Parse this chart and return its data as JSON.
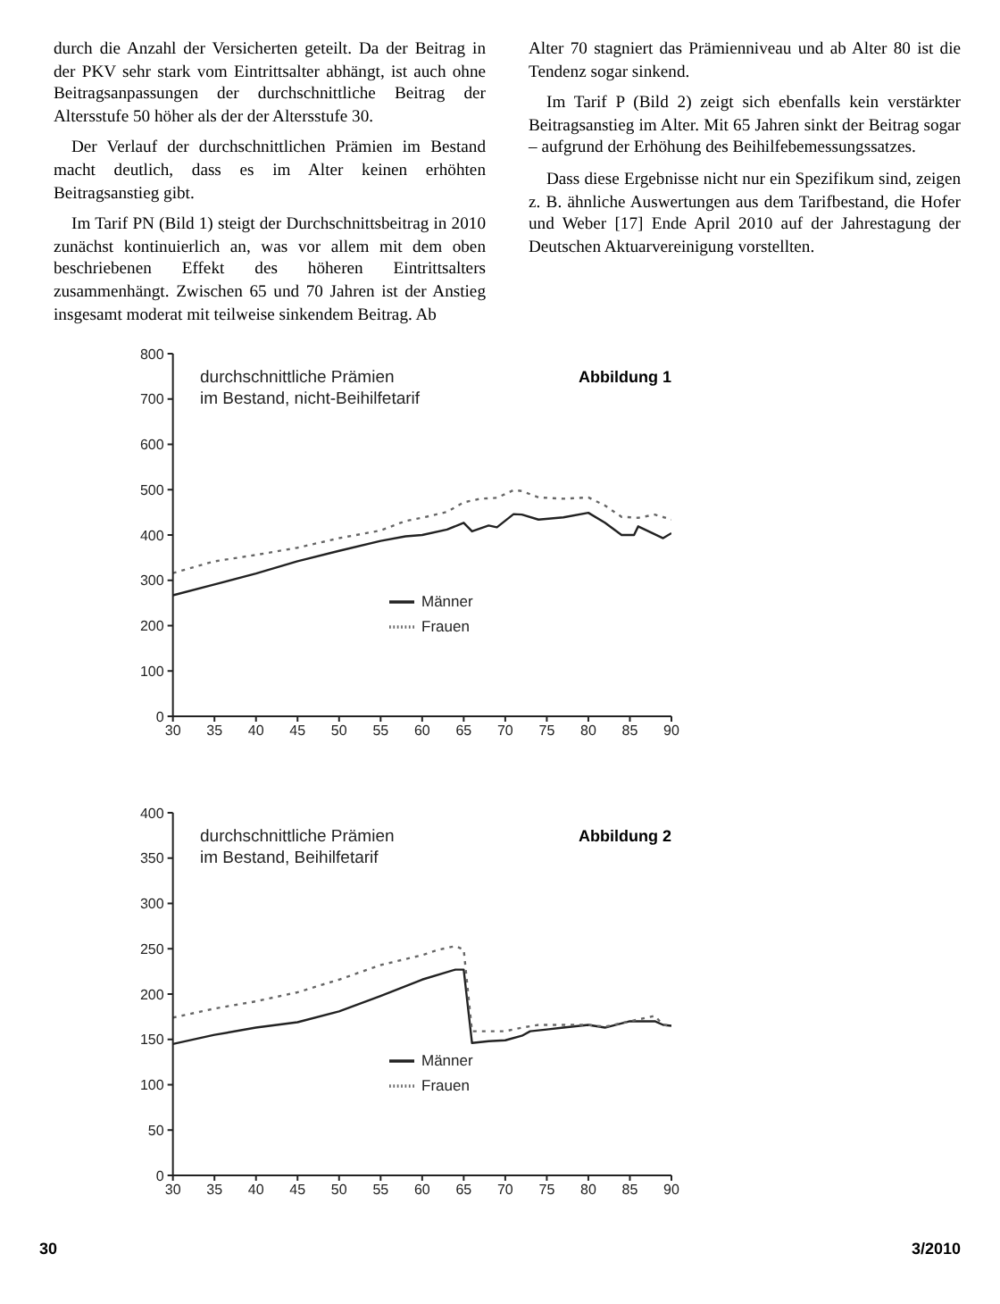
{
  "chart_data": [
    {
      "type": "other",
      "annotations": [
        "durch die Anzahl der Versicherten geteilt. Da der Beitrag in der PKV sehr stark vom Eintrittsalter abhängt, ist auch ohne Beitragsanpassungen der durchschnittliche Beitrag der Altersstufe 50 höher als der der Altersstufe 30.",
        "Der Verlauf der durchschnittlichen Prämien im Bestand macht deutlich, dass es im Alter keinen erhöhten Beitragsanstieg gibt.",
        "Im Tarif PN (Bild 1) steigt der Durchschnittsbeitrag in 2010 zunächst kontinuierlich an, was vor allem mit dem oben beschriebenen Effekt des höheren Eintrittsalters zusammenhängt. Zwischen 65 und 70 Jahren ist der Anstieg insgesamt moderat mit teilweise sinkendem Beitrag. Ab",
        "Alter 70 stagniert das Prämienniveau und ab Alter 80 ist die Tendenz sogar sinkend.",
        "Im Tarif P (Bild 2) zeigt sich ebenfalls kein verstärkter Beitragsanstieg im Alter. Mit 65 Jahren sinkt der Beitrag sogar – aufgrund der Erhöhung des Beihilfebemessungssatzes.",
        "Dass diese Ergebnisse nicht nur ein Spezifikum sind, zeigen z. B. ähnliche Auswertungen aus dem Tarifbestand, die Hofer und Weber [17] Ende April 2010 auf der Jahrestagung der Deutschen Aktuarvereinigung vorstellten."
      ]
    },
    {
      "type": "line",
      "title": "Abbildung 1",
      "annotations": [
        "durchschnittliche Prämien\nim Bestand, nicht-Beihilfetarif"
      ],
      "xlim": [
        30,
        90
      ],
      "xticks": [
        30,
        35,
        40,
        45,
        50,
        55,
        60,
        65,
        70,
        75,
        80,
        85,
        90
      ],
      "ylim": [
        0,
        800
      ],
      "yticks": [
        0,
        100,
        200,
        300,
        400,
        500,
        600,
        700,
        800
      ],
      "legend": "bottom",
      "series": [
        {
          "name": "Männer",
          "color": "#222222",
          "line_style": "solid",
          "x": [
            30,
            35,
            40,
            45,
            50,
            55,
            58,
            60,
            63,
            65,
            66,
            68,
            69,
            71,
            72,
            74,
            77,
            80,
            82,
            84,
            85.5,
            86,
            89,
            90
          ],
          "values": [
            267,
            291,
            315,
            342,
            365,
            387,
            397,
            400,
            412,
            427,
            408,
            421,
            417,
            446,
            445,
            434,
            439,
            449,
            427,
            400,
            400,
            419,
            393,
            404
          ]
        },
        {
          "name": "Frauen",
          "color": "#666666",
          "line_style": "dotted",
          "x": [
            30,
            35,
            40,
            45,
            50,
            55,
            58,
            60,
            63,
            65,
            67,
            69,
            71,
            72,
            74,
            77,
            80,
            82,
            84,
            86,
            88,
            90
          ],
          "values": [
            316,
            342,
            356,
            372,
            393,
            410,
            431,
            438,
            451,
            472,
            480,
            482,
            499,
            497,
            483,
            480,
            483,
            465,
            440,
            438,
            445,
            434
          ]
        }
      ]
    },
    {
      "type": "line",
      "title": "Abbildung 2",
      "annotations": [
        "durchschnittliche Prämien\nim Bestand, Beihilfetarif",
        "30",
        "3/2010"
      ],
      "xlim": [
        30,
        90
      ],
      "xticks": [
        30,
        35,
        40,
        45,
        50,
        55,
        60,
        65,
        70,
        75,
        80,
        85,
        90
      ],
      "ylim": [
        0,
        400
      ],
      "yticks": [
        0,
        50,
        100,
        150,
        200,
        250,
        300,
        350,
        400
      ],
      "legend": "bottom",
      "series": [
        {
          "name": "Männer",
          "color": "#222222",
          "line_style": "solid",
          "x": [
            30,
            35,
            40,
            45,
            50,
            55,
            60,
            64,
            65,
            66,
            68,
            70,
            72,
            73,
            75,
            77,
            79,
            80,
            82,
            85,
            88,
            89,
            90
          ],
          "values": [
            145,
            155,
            163,
            169,
            181,
            198,
            216,
            227,
            227,
            146,
            148,
            149,
            154,
            159,
            161,
            163,
            165,
            166,
            163,
            170,
            170,
            166,
            165
          ]
        },
        {
          "name": "Frauen",
          "color": "#666666",
          "line_style": "dotted",
          "x": [
            30,
            35,
            40,
            45,
            50,
            55,
            60,
            62,
            64,
            65,
            66,
            68,
            70,
            72,
            74,
            76,
            78,
            80,
            82,
            85,
            88,
            89,
            90
          ],
          "values": [
            174,
            184,
            192,
            202,
            216,
            232,
            243,
            249,
            253,
            249,
            159,
            159,
            159,
            163,
            166,
            166,
            166,
            166,
            164,
            170,
            176,
            166,
            165
          ]
        }
      ]
    }
  ]
}
